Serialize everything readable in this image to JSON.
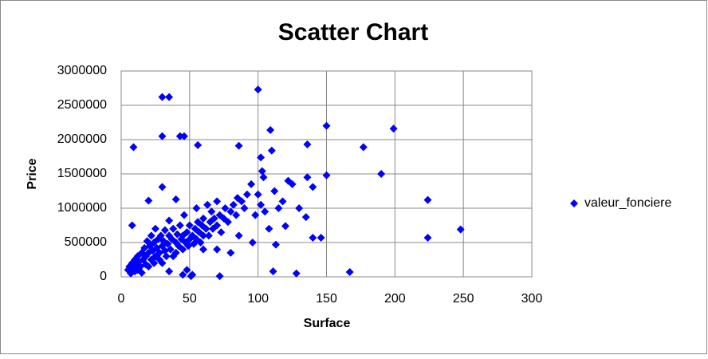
{
  "chart_data": {
    "type": "scatter",
    "title": "Scatter Chart",
    "x_label": "Surface",
    "y_label": "Price",
    "x": [
      9,
      30,
      35,
      30,
      43,
      46,
      100,
      109,
      150,
      199,
      56,
      86,
      136,
      177,
      110,
      102,
      103,
      190,
      150,
      224,
      224,
      248,
      167,
      128,
      111,
      140,
      136,
      135,
      140,
      146,
      120,
      113,
      30,
      20,
      40,
      8,
      72,
      5,
      6,
      7,
      8,
      9,
      10,
      10,
      11,
      12,
      12,
      13,
      14,
      15,
      15,
      16,
      17,
      18,
      18,
      19,
      20,
      20,
      21,
      22,
      22,
      23,
      24,
      24,
      25,
      25,
      26,
      27,
      28,
      28,
      29,
      30,
      30,
      31,
      32,
      32,
      33,
      34,
      35,
      35,
      36,
      37,
      38,
      38,
      40,
      40,
      41,
      42,
      43,
      44,
      45,
      45,
      46,
      47,
      48,
      49,
      50,
      50,
      51,
      52,
      53,
      54,
      55,
      55,
      56,
      57,
      58,
      59,
      60,
      60,
      62,
      63,
      64,
      65,
      66,
      67,
      68,
      70,
      70,
      72,
      73,
      75,
      76,
      78,
      80,
      80,
      82,
      84,
      85,
      86,
      88,
      90,
      92,
      95,
      96,
      98,
      100,
      102,
      104,
      105,
      108,
      112,
      115,
      118,
      122,
      125,
      130,
      45,
      48,
      52,
      35,
      60,
      70
    ],
    "series": [
      {
        "name": "valeur_fonciere",
        "color": "#0000ff",
        "values": [
          1890000,
          2620000,
          2620000,
          2050000,
          2050000,
          2050000,
          2730000,
          2140000,
          2200000,
          2160000,
          1920000,
          1910000,
          1930000,
          1890000,
          1840000,
          1740000,
          1540000,
          1500000,
          1480000,
          1120000,
          570000,
          690000,
          70000,
          50000,
          80000,
          1310000,
          1450000,
          870000,
          570000,
          570000,
          740000,
          470000,
          1310000,
          1110000,
          1130000,
          750000,
          10000,
          100000,
          150000,
          50000,
          200000,
          120000,
          250000,
          80000,
          180000,
          300000,
          100000,
          220000,
          150000,
          350000,
          60000,
          250000,
          420000,
          180000,
          300000,
          520000,
          350000,
          150000,
          450000,
          250000,
          600000,
          380000,
          200000,
          500000,
          700000,
          300000,
          420000,
          550000,
          250000,
          350000,
          600000,
          450000,
          200000,
          520000,
          380000,
          680000,
          300000,
          480000,
          600000,
          820000,
          400000,
          550000,
          300000,
          700000,
          500000,
          350000,
          620000,
          450000,
          750000,
          550000,
          400000,
          600000,
          900000,
          500000,
          650000,
          450000,
          550000,
          750000,
          10000,
          600000,
          480000,
          700000,
          1000000,
          550000,
          800000,
          650000,
          500000,
          750000,
          850000,
          600000,
          700000,
          1050000,
          600000,
          800000,
          950000,
          700000,
          850000,
          750000,
          1100000,
          900000,
          650000,
          850000,
          1000000,
          800000,
          950000,
          350000,
          1050000,
          900000,
          1150000,
          600000,
          1100000,
          1000000,
          1200000,
          1350000,
          500000,
          900000,
          1200000,
          1050000,
          1450000,
          950000,
          700000,
          1250000,
          1000000,
          1100000,
          1400000,
          1350000,
          1000000,
          30000,
          100000,
          30000,
          80000,
          400000,
          400000
        ]
      }
    ],
    "xlim": [
      0,
      300
    ],
    "xticks": [
      0,
      50,
      100,
      150,
      200,
      250,
      300
    ],
    "ylim": [
      0,
      3000000
    ],
    "yticks": [
      0,
      500000,
      1000000,
      1500000,
      2000000,
      2500000,
      3000000
    ],
    "grid": true,
    "legend": "right"
  }
}
